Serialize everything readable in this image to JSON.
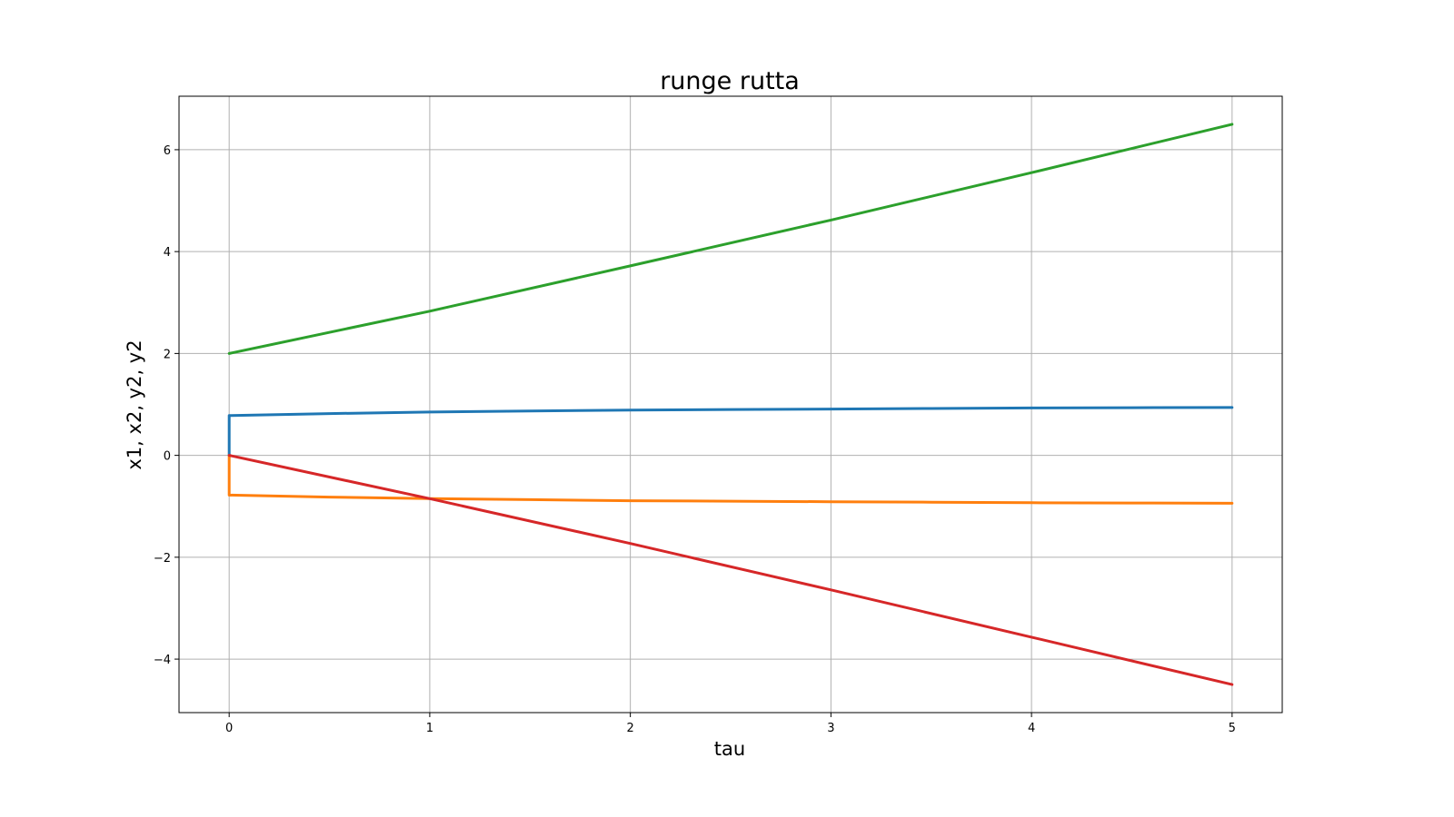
{
  "chart_data": {
    "type": "line",
    "title": "runge rutta",
    "xlabel": "tau",
    "ylabel": "x1, x2, y2, y2",
    "xlim": [
      -0.25,
      5.25
    ],
    "ylim": [
      -5.05,
      7.05
    ],
    "xticks": [
      0,
      1,
      2,
      3,
      4,
      5
    ],
    "yticks": [
      -4,
      -2,
      0,
      2,
      4,
      6
    ],
    "xtick_labels": [
      "0",
      "1",
      "2",
      "3",
      "4",
      "5"
    ],
    "ytick_labels": [
      "−4",
      "−2",
      "0",
      "2",
      "4",
      "6"
    ],
    "grid": true,
    "series": [
      {
        "color": "#1f77b4",
        "x": [
          0,
          0,
          0.5,
          1,
          1.5,
          2,
          2.5,
          3,
          3.5,
          4,
          4.5,
          5
        ],
        "y": [
          0,
          0.78,
          0.82,
          0.85,
          0.87,
          0.89,
          0.9,
          0.91,
          0.92,
          0.93,
          0.935,
          0.94
        ]
      },
      {
        "color": "#ff7f0e",
        "x": [
          0,
          0,
          0.5,
          1,
          1.5,
          2,
          2.5,
          3,
          3.5,
          4,
          4.5,
          5
        ],
        "y": [
          0,
          -0.78,
          -0.82,
          -0.85,
          -0.87,
          -0.89,
          -0.9,
          -0.91,
          -0.92,
          -0.93,
          -0.935,
          -0.94
        ]
      },
      {
        "color": "#2ca02c",
        "x": [
          0,
          1,
          2,
          3,
          4,
          5
        ],
        "y": [
          2.0,
          2.83,
          3.72,
          4.62,
          5.55,
          6.5
        ]
      },
      {
        "color": "#d62728",
        "x": [
          0,
          1,
          2,
          3,
          4,
          5
        ],
        "y": [
          0,
          -0.85,
          -1.73,
          -2.64,
          -3.57,
          -4.5
        ]
      }
    ]
  }
}
